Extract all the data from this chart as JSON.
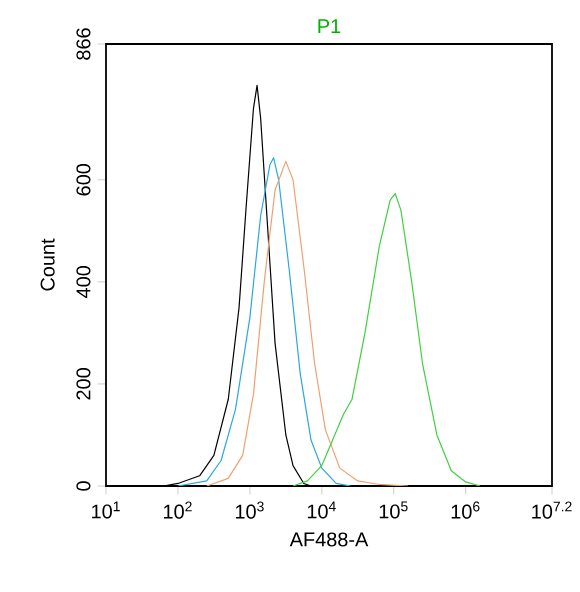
{
  "chart_data": {
    "type": "line",
    "title": "P1",
    "xlabel": "AF488-A",
    "ylabel": "Count",
    "log": "x",
    "xlim": [
      10,
      15848932
    ],
    "ylim": [
      0,
      866
    ],
    "xticks": [
      {
        "value": 10,
        "label": "10$^{1}$"
      },
      {
        "value": 100,
        "label": "10$^{2}$"
      },
      {
        "value": 1000,
        "label": "10$^{3}$"
      },
      {
        "value": 10000,
        "label": "10$^{4}$"
      },
      {
        "value": 100000,
        "label": "10$^{5}$"
      },
      {
        "value": 1000000,
        "label": "10$^{6}$"
      },
      {
        "value": 15848932,
        "label": "10$^{7.2}$"
      }
    ],
    "yticks": [
      0,
      200,
      400,
      600,
      866
    ],
    "series": [
      {
        "color": "#000000",
        "x": [
          63,
          100,
          200,
          316,
          501,
          708,
          891,
          1122,
          1259,
          1413,
          1778,
          2239,
          3162,
          3981,
          5623,
          7079
        ],
        "values": [
          0,
          5,
          20,
          60,
          170,
          350,
          550,
          740,
          785,
          720,
          500,
          280,
          100,
          40,
          5,
          0
        ]
      },
      {
        "color": "#29a8e0",
        "x": [
          100,
          251,
          398,
          631,
          1000,
          1413,
          1905,
          2138,
          2512,
          3548,
          5012,
          7079,
          10000,
          15850,
          25120
        ],
        "values": [
          0,
          10,
          50,
          150,
          330,
          530,
          630,
          643,
          600,
          420,
          220,
          90,
          35,
          5,
          0
        ]
      },
      {
        "color": "#f0a070",
        "x": [
          251,
          501,
          794,
          1122,
          1585,
          2239,
          3162,
          3981,
          5623,
          7943,
          11220,
          17780,
          31620,
          63100,
          158500
        ],
        "values": [
          0,
          15,
          60,
          180,
          400,
          580,
          636,
          600,
          430,
          240,
          110,
          35,
          10,
          3,
          0
        ]
      },
      {
        "color": "#40d040",
        "x": [
          3981,
          6310,
          10000,
          14130,
          19950,
          26300,
          39810,
          63100,
          89130,
          104700,
          125900,
          177800,
          251200,
          398100,
          631000,
          1000000,
          1585000
        ],
        "values": [
          0,
          10,
          40,
          90,
          140,
          170,
          300,
          470,
          560,
          573,
          540,
          400,
          240,
          100,
          30,
          8,
          0
        ]
      }
    ]
  }
}
